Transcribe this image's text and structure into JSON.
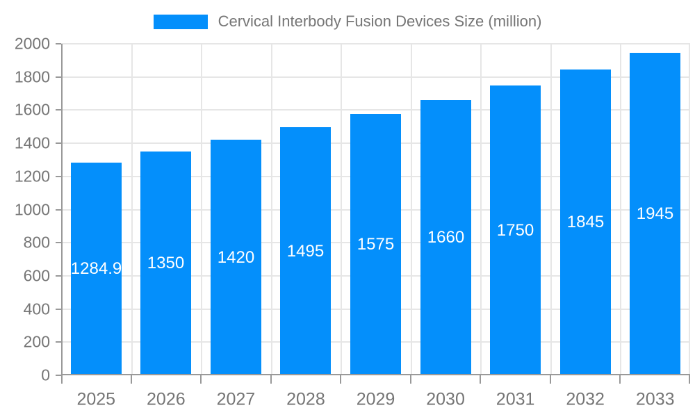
{
  "legend": {
    "label": "Cervical Interbody Fusion Devices Size (million)"
  },
  "chart_data": {
    "type": "bar",
    "title": "Cervical Interbody Fusion Devices Size (million)",
    "categories": [
      "2025",
      "2026",
      "2027",
      "2028",
      "2029",
      "2030",
      "2031",
      "2032",
      "2033"
    ],
    "values": [
      1284.9,
      1350,
      1420,
      1495,
      1575,
      1660,
      1750,
      1845,
      1945
    ],
    "value_labels": [
      "1284.9",
      "1350",
      "1420",
      "1495",
      "1575",
      "1660",
      "1750",
      "1845",
      "1945"
    ],
    "xlabel": "",
    "ylabel": "",
    "ylim": [
      0,
      2000
    ],
    "yticks": [
      0,
      200,
      400,
      600,
      800,
      1000,
      1200,
      1400,
      1600,
      1800,
      2000
    ],
    "grid": true,
    "legend_position": "top",
    "colors": {
      "bar": "#048ffb",
      "axis_line": "#999999",
      "grid_line": "#e6e6e6",
      "tick_label": "#757575",
      "value_label": "#ffffff",
      "background": "#ffffff"
    }
  }
}
